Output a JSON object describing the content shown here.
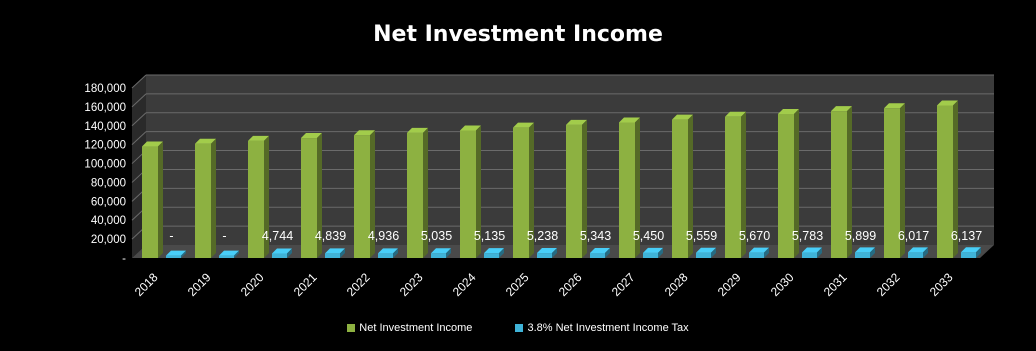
{
  "chart_data": {
    "type": "bar",
    "title": "Net Investment Income",
    "categories": [
      "2018",
      "2019",
      "2020",
      "2021",
      "2022",
      "2023",
      "2024",
      "2025",
      "2026",
      "2027",
      "2028",
      "2029",
      "2030",
      "2031",
      "2032",
      "2033"
    ],
    "series": [
      {
        "name": "Net Investment Income",
        "color": "#8db141",
        "values": [
          118000,
          121000,
          124000,
          127000,
          130000,
          132500,
          135000,
          138000,
          141000,
          143500,
          146500,
          149500,
          152500,
          155500,
          158500,
          161500
        ]
      },
      {
        "name": "3.8% Net Investment Income Tax",
        "color": "#3fb3d8",
        "values": [
          0,
          0,
          4744,
          4839,
          4936,
          5035,
          5135,
          5238,
          5343,
          5450,
          5559,
          5670,
          5783,
          5899,
          6017,
          6137
        ],
        "data_labels": [
          "-",
          "-",
          "4,744",
          "4,839",
          "4,936",
          "5,035",
          "5,135",
          "5,238",
          "5,343",
          "5,450",
          "5,559",
          "5,670",
          "5,783",
          "5,899",
          "6,017",
          "6,137"
        ]
      }
    ],
    "y_ticks": [
      "-",
      "20,000",
      "40,000",
      "60,000",
      "80,000",
      "100,000",
      "120,000",
      "140,000",
      "160,000",
      "180,000"
    ],
    "ylim": [
      0,
      180000
    ],
    "grid": true,
    "legend_position": "bottom"
  }
}
